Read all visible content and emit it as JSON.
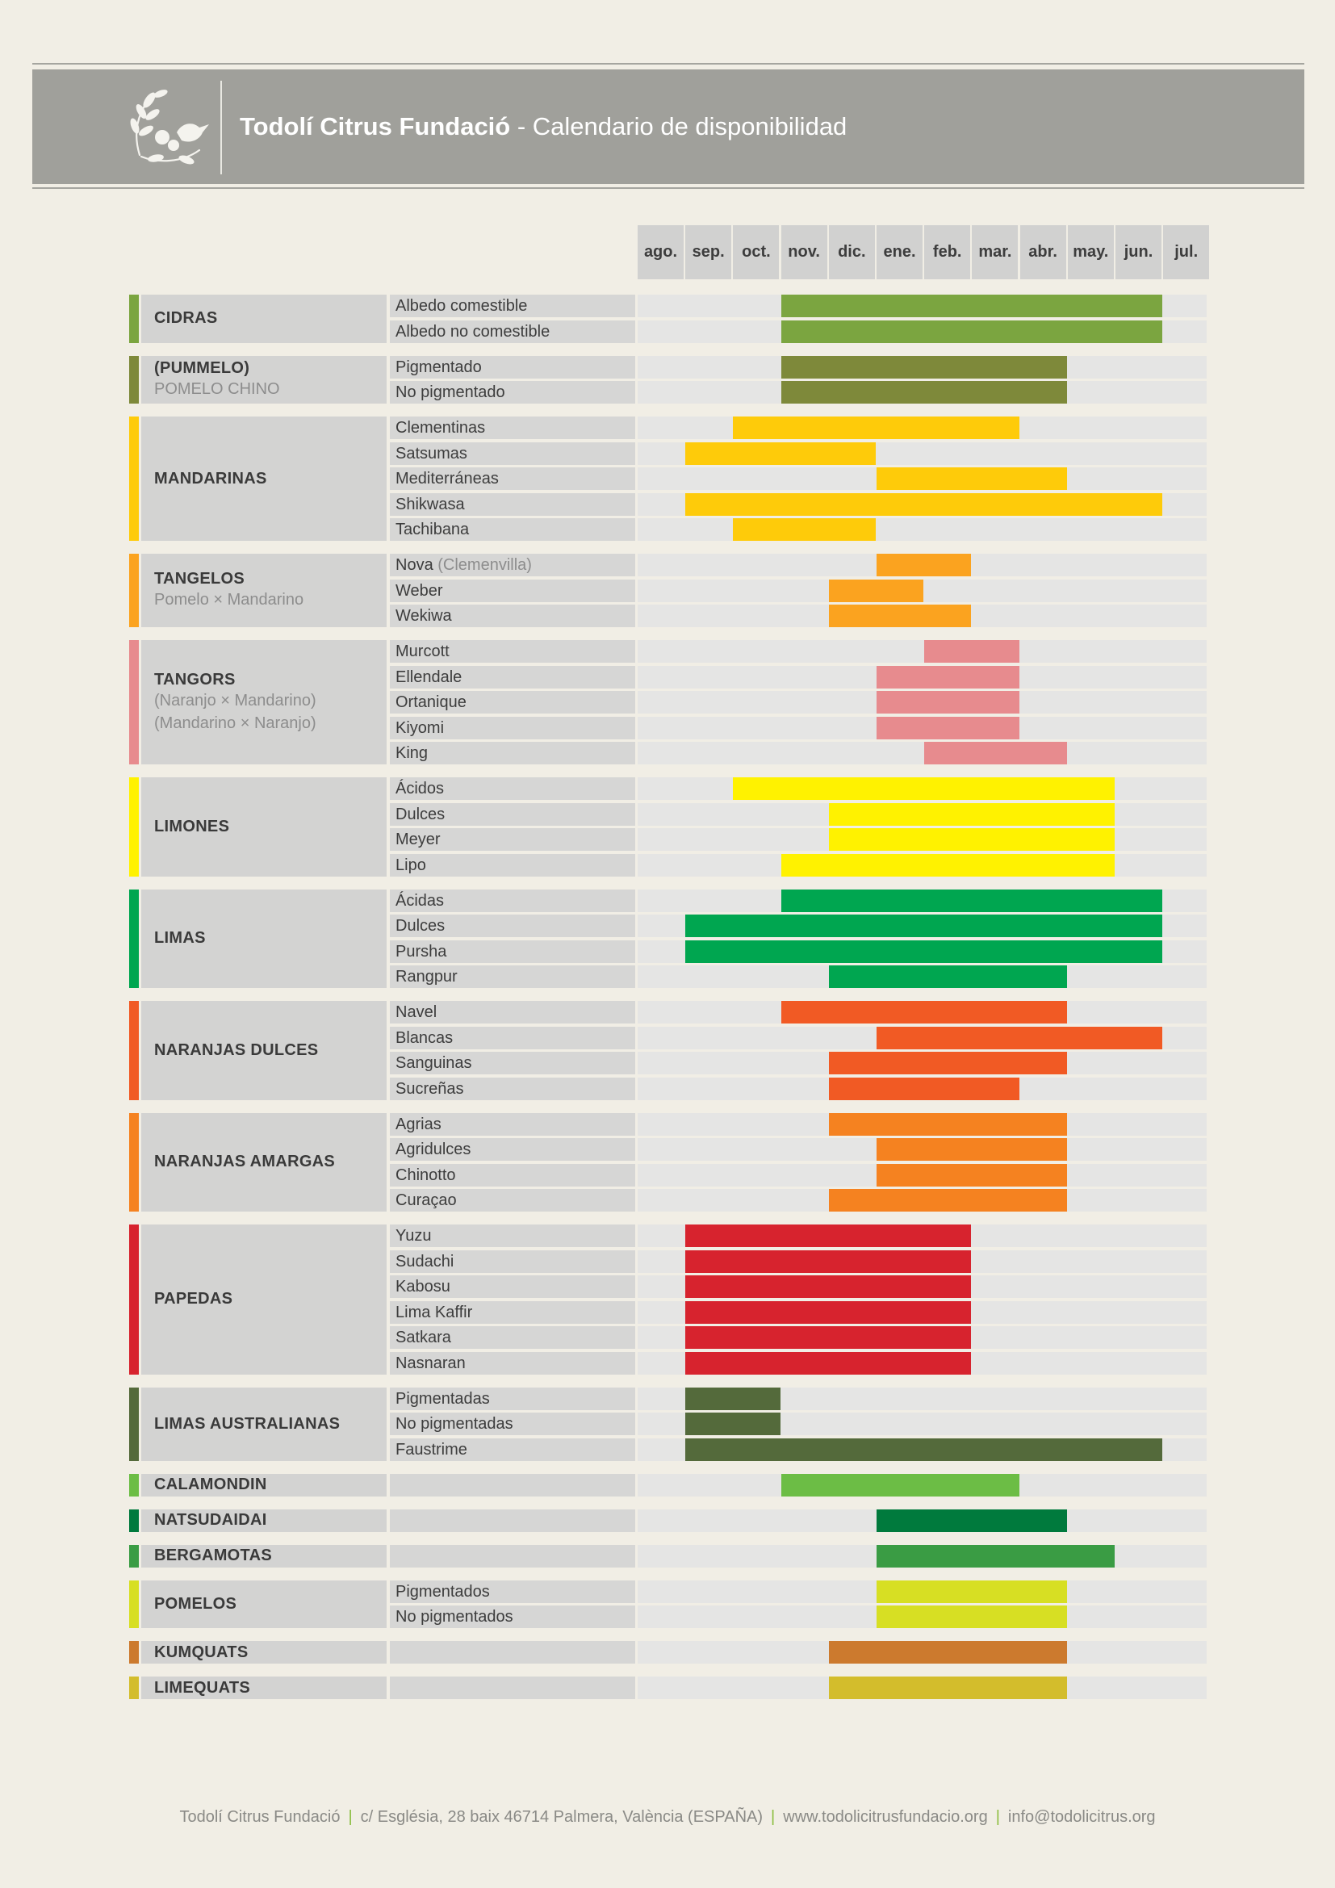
{
  "header": {
    "title": "Todolí Citrus Fundació",
    "dash": " - ",
    "subtitle": "Calendario de disponibilidad"
  },
  "footer": {
    "org": "Todolí Citrus  Fundació",
    "address": "c/ Església, 28 baix 46714 Palmera, València (ESPAÑA)",
    "web": "www.todolicitrusfundacio.org",
    "email": "info@todolicitrus.org",
    "separator": "|"
  },
  "chart_data": {
    "type": "gantt",
    "months": [
      "ago.",
      "sep.",
      "oct.",
      "nov.",
      "dic.",
      "ene.",
      "feb.",
      "mar.",
      "abr.",
      "may.",
      "jun.",
      "jul."
    ],
    "value_note": "start/end are month indices (0 = ago.) covering [start, end)",
    "groups": [
      {
        "name": "CIDRAS",
        "color": "#7ba540",
        "subtitle": [],
        "varieties": [
          {
            "name": "Albedo comestible",
            "start": 3,
            "end": 11
          },
          {
            "name": "Albedo no comestible",
            "start": 3,
            "end": 11
          }
        ]
      },
      {
        "name": "(PUMMELO)",
        "color": "#7e893a",
        "subtitle": [
          "POMELO CHINO"
        ],
        "varieties": [
          {
            "name": "Pigmentado",
            "start": 3,
            "end": 9
          },
          {
            "name": "No pigmentado",
            "start": 3,
            "end": 9
          }
        ]
      },
      {
        "name": "MANDARINAS",
        "color": "#fecb0a",
        "subtitle": [],
        "varieties": [
          {
            "name": "Clementinas",
            "start": 2,
            "end": 8
          },
          {
            "name": "Satsumas",
            "start": 1,
            "end": 5
          },
          {
            "name": "Mediterráneas",
            "start": 5,
            "end": 9
          },
          {
            "name": "Shikwasa",
            "start": 1,
            "end": 11
          },
          {
            "name": "Tachibana",
            "start": 2,
            "end": 5
          }
        ]
      },
      {
        "name": "TANGELOS",
        "color": "#fba31f",
        "subtitle": [
          "Pomelo × Mandarino"
        ],
        "varieties": [
          {
            "name": "Nova",
            "note": "(Clemenvilla)",
            "start": 5,
            "end": 7
          },
          {
            "name": "Weber",
            "start": 4,
            "end": 6
          },
          {
            "name": "Wekiwa",
            "start": 4,
            "end": 7
          }
        ]
      },
      {
        "name": "TANGORS",
        "color": "#e78b8e",
        "subtitle": [
          "(Naranjo × Mandarino)",
          "(Mandarino × Naranjo)"
        ],
        "varieties": [
          {
            "name": "Murcott",
            "start": 6,
            "end": 8
          },
          {
            "name": "Ellendale",
            "start": 5,
            "end": 8
          },
          {
            "name": "Ortanique",
            "start": 5,
            "end": 8
          },
          {
            "name": "Kiyomi",
            "start": 5,
            "end": 8
          },
          {
            "name": "King",
            "start": 6,
            "end": 9
          }
        ]
      },
      {
        "name": "LIMONES",
        "color": "#fff200",
        "subtitle": [],
        "varieties": [
          {
            "name": "Ácidos",
            "start": 2,
            "end": 10
          },
          {
            "name": "Dulces",
            "start": 4,
            "end": 10
          },
          {
            "name": "Meyer",
            "start": 4,
            "end": 10
          },
          {
            "name": "Lipo",
            "start": 3,
            "end": 10
          }
        ]
      },
      {
        "name": "LIMAS",
        "color": "#00a650",
        "subtitle": [],
        "varieties": [
          {
            "name": "Ácidas",
            "start": 3,
            "end": 11
          },
          {
            "name": "Dulces",
            "start": 1,
            "end": 11
          },
          {
            "name": "Pursha",
            "start": 1,
            "end": 11
          },
          {
            "name": "Rangpur",
            "start": 4,
            "end": 9
          }
        ]
      },
      {
        "name": "NARANJAS DULCES",
        "color": "#f15a24",
        "subtitle": [],
        "varieties": [
          {
            "name": "Navel",
            "start": 3,
            "end": 9
          },
          {
            "name": "Blancas",
            "start": 5,
            "end": 11
          },
          {
            "name": "Sanguinas",
            "start": 4,
            "end": 9
          },
          {
            "name": "Sucreñas",
            "start": 4,
            "end": 8
          }
        ]
      },
      {
        "name": "NARANJAS AMARGAS",
        "color": "#f58220",
        "subtitle": [],
        "varieties": [
          {
            "name": "Agrias",
            "start": 4,
            "end": 9
          },
          {
            "name": "Agridulces",
            "start": 5,
            "end": 9
          },
          {
            "name": "Chinotto",
            "start": 5,
            "end": 9
          },
          {
            "name": "Curaçao",
            "start": 4,
            "end": 9
          }
        ]
      },
      {
        "name": "PAPEDAS",
        "color": "#d7232e",
        "subtitle": [],
        "varieties": [
          {
            "name": "Yuzu",
            "start": 1,
            "end": 7
          },
          {
            "name": "Sudachi",
            "start": 1,
            "end": 7
          },
          {
            "name": "Kabosu",
            "start": 1,
            "end": 7
          },
          {
            "name": "Lima Kaffir",
            "start": 1,
            "end": 7
          },
          {
            "name": "Satkara",
            "start": 1,
            "end": 7
          },
          {
            "name": "Nasnaran",
            "start": 1,
            "end": 7
          }
        ]
      },
      {
        "name": "LIMAS AUSTRALIANAS",
        "color": "#546a3b",
        "subtitle": [],
        "varieties": [
          {
            "name": "Pigmentadas",
            "start": 1,
            "end": 3
          },
          {
            "name": "No pigmentadas",
            "start": 1,
            "end": 3
          },
          {
            "name": "Faustrime",
            "start": 1,
            "end": 11
          }
        ]
      },
      {
        "name": "CALAMONDIN",
        "color": "#6cbd45",
        "subtitle": [],
        "varieties": [
          {
            "name": "",
            "start": 3,
            "end": 8
          }
        ]
      },
      {
        "name": "NATSUDAIDAI",
        "color": "#007a3d",
        "subtitle": [],
        "varieties": [
          {
            "name": "",
            "start": 5,
            "end": 9
          }
        ]
      },
      {
        "name": "BERGAMOTAS",
        "color": "#3a9c44",
        "subtitle": [],
        "varieties": [
          {
            "name": "",
            "start": 5,
            "end": 10
          }
        ]
      },
      {
        "name": "POMELOS",
        "color": "#d7df23",
        "subtitle": [],
        "varieties": [
          {
            "name": "Pigmentados",
            "start": 5,
            "end": 9
          },
          {
            "name": "No pigmentados",
            "start": 5,
            "end": 9
          }
        ]
      },
      {
        "name": "KUMQUATS",
        "color": "#cc7a2e",
        "subtitle": [],
        "varieties": [
          {
            "name": "",
            "start": 4,
            "end": 9
          }
        ]
      },
      {
        "name": "LIMEQUATS",
        "color": "#d3bd2c",
        "subtitle": [],
        "varieties": [
          {
            "name": "",
            "start": 4,
            "end": 9
          }
        ]
      }
    ]
  }
}
